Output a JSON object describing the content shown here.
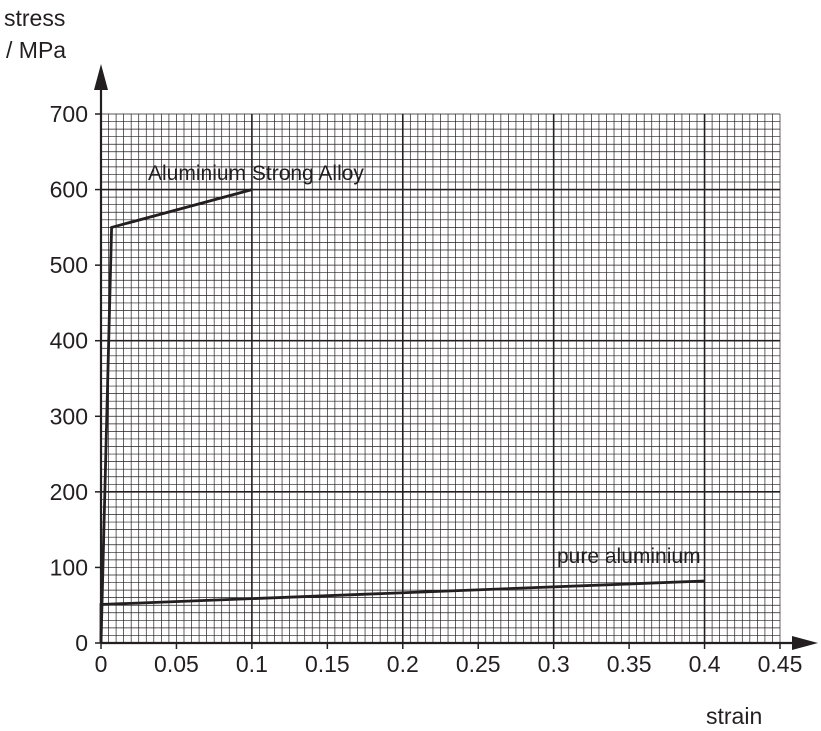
{
  "chart_data": {
    "type": "line",
    "ylabel_line1": "stress",
    "ylabel_line2": "/ MPa",
    "xlabel": "strain",
    "xlim": [
      0,
      0.45
    ],
    "ylim": [
      0,
      700
    ],
    "grid": true,
    "x_ticks": [
      "0",
      "0.05",
      "0.1",
      "0.15",
      "0.2",
      "0.25",
      "0.3",
      "0.35",
      "0.4",
      "0.45"
    ],
    "y_ticks": [
      "0",
      "100",
      "200",
      "300",
      "400",
      "500",
      "600",
      "700"
    ],
    "series": [
      {
        "name": "Aluminium Strong Alloy",
        "points": [
          [
            0,
            0
          ],
          [
            0.007,
            550
          ],
          [
            0.1,
            600
          ]
        ]
      },
      {
        "name": "pure aluminium",
        "points": [
          [
            0,
            0
          ],
          [
            0,
            51
          ],
          [
            0.4,
            82
          ]
        ]
      }
    ],
    "colors": {
      "line": "#231f20",
      "grid": "#231f20"
    }
  }
}
